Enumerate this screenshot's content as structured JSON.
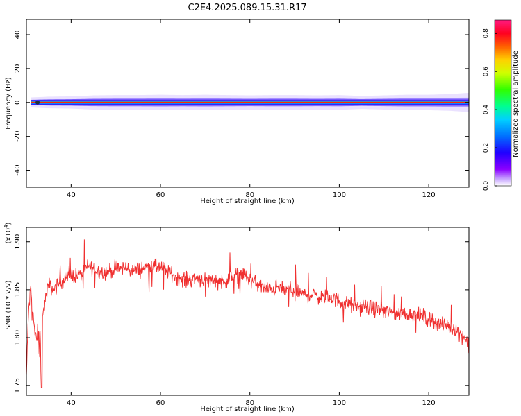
{
  "title": "C2E4.2025.089.15.31.R17",
  "colors": {
    "snr_line": "#f03030",
    "spectrum_core": "#ff2a00",
    "spectrum_mid": "#00c060",
    "spectrum_edge": "#5a1cff",
    "halo": "#d8c8ff"
  },
  "chart_data": [
    {
      "type": "heatmap",
      "title": "C2E4.2025.089.15.31.R17",
      "xlabel": "Height of straight line (km)",
      "ylabel": "Frequency (Hz)",
      "xlim": [
        30,
        129
      ],
      "ylim": [
        -50,
        49
      ],
      "xticks": [
        40,
        60,
        80,
        100,
        120
      ],
      "yticks": [
        40,
        20,
        0,
        -20,
        -40
      ],
      "colorbar": {
        "label": "Normalized spectral amplitude",
        "range": [
          0.0,
          0.87
        ],
        "ticks": [
          "0.0",
          "0.2",
          "0.4",
          "0.6",
          "0.8"
        ],
        "tick_values": [
          0.0,
          0.2,
          0.4,
          0.6,
          0.8
        ],
        "colormap": [
          "#ffffff",
          "#8a00ff",
          "#0000ff",
          "#00c8ff",
          "#00ff80",
          "#80ff00",
          "#ffff00",
          "#ff8000",
          "#ff0000",
          "#ff0080"
        ]
      },
      "band": {
        "center_frequency_hz": 0,
        "half_width_hz": [
          [
            30,
            1.5
          ],
          [
            35,
            1.8
          ],
          [
            40,
            1.9
          ],
          [
            45,
            2.2
          ],
          [
            50,
            2.3
          ],
          [
            55,
            2.3
          ],
          [
            60,
            2.4
          ],
          [
            65,
            2.3
          ],
          [
            70,
            2.4
          ],
          [
            75,
            2.3
          ],
          [
            80,
            2.2
          ],
          [
            85,
            2.3
          ],
          [
            90,
            2.3
          ],
          [
            95,
            2.2
          ],
          [
            100,
            2.3
          ],
          [
            105,
            2.0
          ],
          [
            110,
            2.2
          ],
          [
            115,
            2.4
          ],
          [
            120,
            2.4
          ],
          [
            125,
            2.6
          ],
          [
            129,
            3.0
          ]
        ]
      }
    },
    {
      "type": "line",
      "xlabel": "Height of straight line (km)",
      "ylabel": "SNR (10 * v/v)",
      "y_scale_label": "(x10^4)",
      "xlim": [
        30,
        129
      ],
      "ylim": [
        1.74,
        1.915
      ],
      "xticks": [
        40,
        60,
        80,
        100,
        120
      ],
      "yticks": [
        1.75,
        1.8,
        1.85,
        1.9
      ],
      "ytick_labels": [
        "1.75",
        "1.80",
        "1.85",
        "1.90"
      ],
      "series": [
        {
          "color": "#f03030",
          "x": [
            30,
            30.5,
            31,
            32,
            33,
            34,
            35,
            36,
            38,
            40,
            42,
            44,
            46,
            48,
            50,
            52,
            54,
            56,
            58,
            60,
            62,
            64,
            66,
            68,
            70,
            72,
            74,
            76,
            78,
            80,
            82,
            84,
            86,
            88,
            90,
            92,
            94,
            96,
            98,
            100,
            102,
            104,
            106,
            108,
            110,
            112,
            114,
            116,
            118,
            120,
            122,
            124,
            126,
            128,
            129
          ],
          "y": [
            1.76,
            1.83,
            1.85,
            1.8,
            1.79,
            1.835,
            1.855,
            1.85,
            1.86,
            1.865,
            1.865,
            1.875,
            1.87,
            1.868,
            1.872,
            1.873,
            1.87,
            1.872,
            1.875,
            1.873,
            1.868,
            1.862,
            1.86,
            1.862,
            1.86,
            1.86,
            1.858,
            1.862,
            1.868,
            1.86,
            1.855,
            1.85,
            1.852,
            1.85,
            1.85,
            1.845,
            1.845,
            1.842,
            1.842,
            1.838,
            1.835,
            1.832,
            1.832,
            1.83,
            1.828,
            1.826,
            1.825,
            1.825,
            1.823,
            1.82,
            1.815,
            1.812,
            1.81,
            1.8,
            1.79
          ],
          "noise_amplitude": 0.012
        }
      ]
    }
  ]
}
